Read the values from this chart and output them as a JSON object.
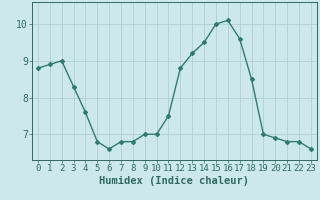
{
  "x": [
    0,
    1,
    2,
    3,
    4,
    5,
    6,
    7,
    8,
    9,
    10,
    11,
    12,
    13,
    14,
    15,
    16,
    17,
    18,
    19,
    20,
    21,
    22,
    23
  ],
  "y": [
    8.8,
    8.9,
    9.0,
    8.3,
    7.6,
    6.8,
    6.6,
    6.8,
    6.8,
    7.0,
    7.0,
    7.5,
    8.8,
    9.2,
    9.5,
    10.0,
    10.1,
    9.6,
    8.5,
    7.0,
    6.9,
    6.8,
    6.8,
    6.6
  ],
  "line_color": "#2d7d6e",
  "marker": "D",
  "marker_size": 2.0,
  "bg_color": "#cce8ec",
  "grid_color": "#b0cfd4",
  "xlabel": "Humidex (Indice chaleur)",
  "ylim": [
    6.3,
    10.6
  ],
  "yticks": [
    7,
    8,
    9,
    10
  ],
  "xlim": [
    -0.5,
    23.5
  ],
  "xlabel_fontsize": 7.5,
  "tick_fontsize": 7.0,
  "axis_color": "#2d6b60",
  "line_width": 1.0,
  "grid_lw": 0.6
}
